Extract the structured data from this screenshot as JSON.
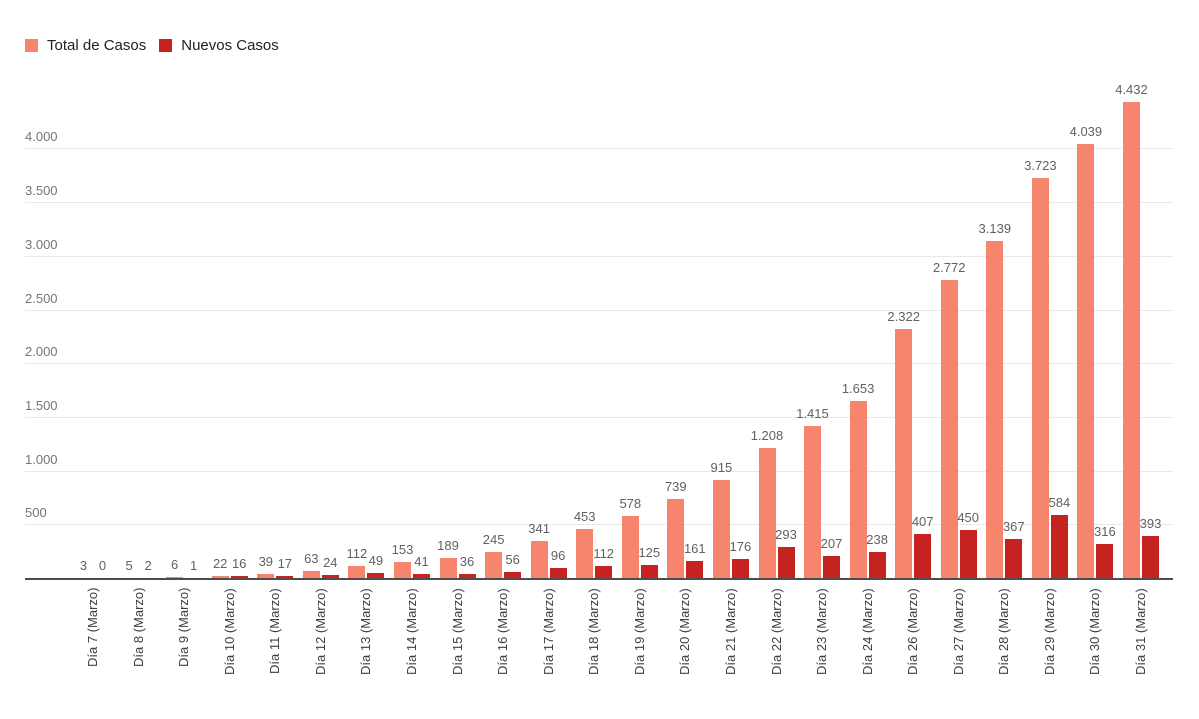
{
  "legend": {
    "items": [
      {
        "label": "Total de Casos",
        "color": "#F7846D"
      },
      {
        "label": "Nuevos Casos",
        "color": "#C5231F"
      }
    ]
  },
  "colors": {
    "total_series": "#F7846D",
    "nuevos_series": "#C5231F",
    "gridline": "#E8E8E8",
    "axis_line": "#4D4D4D",
    "y_tick_text": "#757575",
    "data_label_text": "#616161",
    "x_label_text": "#3C4043",
    "legend_text": "#212121",
    "background": "#FFFFFF"
  },
  "chart_data": {
    "type": "bar",
    "title": "",
    "xlabel": "",
    "ylabel": "",
    "grid": true,
    "legend_position": "top-left",
    "x_label_rotation": -90,
    "ylim": [
      0,
      4500
    ],
    "categories": [
      "Día 7 (Marzo)",
      "Día 8 (Marzo)",
      "Día 9 (Marzo)",
      "Día 10 (Marzo)",
      "Día 11 (Marzo)",
      "Día 12 (Marzo)",
      "Día 13 (Marzo)",
      "Día 14 (Marzo)",
      "Día 15 (Marzo)",
      "Día 16 (Marzo)",
      "Día 17 (Marzo)",
      "Día 18 (Marzo)",
      "Día 19 (Marzo)",
      "Día 20 (Marzo)",
      "Día 21 (Marzo)",
      "Día 22 (Marzo)",
      "Día 23 (Marzo)",
      "Día 24 (Marzo)",
      "Día 26 (Marzo)",
      "Día 27 (Marzo)",
      "Día 28 (Marzo)",
      "Día 29 (Marzo)",
      "Día 30 (Marzo)",
      "Día 31 (Marzo)"
    ],
    "series": [
      {
        "name": "Total de Casos",
        "color": "#F7846D",
        "values": [
          3,
          5,
          6,
          22,
          39,
          63,
          112,
          153,
          189,
          245,
          341,
          453,
          578,
          739,
          915,
          1208,
          1415,
          1653,
          2322,
          2772,
          3139,
          3723,
          4039,
          4432
        ],
        "labels": [
          "3",
          "5",
          "6",
          "22",
          "39",
          "63",
          "112",
          "153",
          "189",
          "245",
          "341",
          "453",
          "578",
          "739",
          "915",
          "1.208",
          "1.415",
          "1.653",
          "2.322",
          "2.772",
          "3.139",
          "3.723",
          "4.039",
          "4.432"
        ]
      },
      {
        "name": "Nuevos Casos",
        "color": "#C5231F",
        "values": [
          0,
          2,
          1,
          16,
          17,
          24,
          49,
          41,
          36,
          56,
          96,
          112,
          125,
          161,
          176,
          293,
          207,
          238,
          407,
          450,
          367,
          584,
          316,
          393
        ],
        "labels": [
          "0",
          "2",
          "1",
          "16",
          "17",
          "24",
          "49",
          "41",
          "36",
          "56",
          "96",
          "112",
          "125",
          "161",
          "176",
          "293",
          "207",
          "238",
          "407",
          "450",
          "367",
          "584",
          "316",
          "393"
        ]
      }
    ],
    "y_ticks": [
      {
        "value": 500,
        "label": "500"
      },
      {
        "value": 1000,
        "label": "1.000"
      },
      {
        "value": 1500,
        "label": "1.500"
      },
      {
        "value": 2000,
        "label": "2.000"
      },
      {
        "value": 2500,
        "label": "2.500"
      },
      {
        "value": 3000,
        "label": "3.000"
      },
      {
        "value": 3500,
        "label": "3.500"
      },
      {
        "value": 4000,
        "label": "4.000"
      }
    ]
  }
}
